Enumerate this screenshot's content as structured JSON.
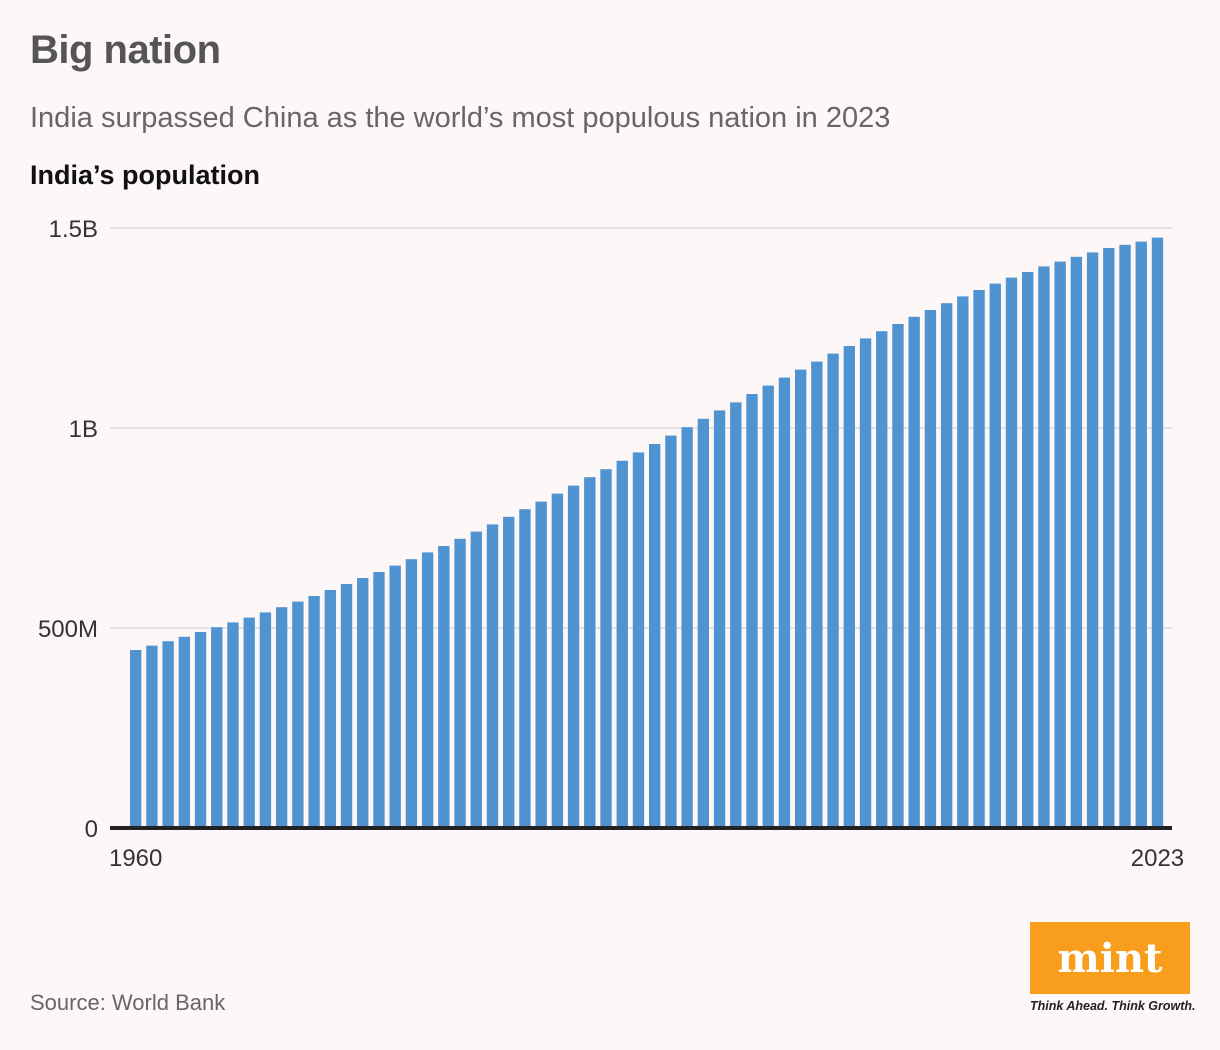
{
  "header": {
    "title": "Big nation",
    "subtitle": "India surpassed China as the world’s most populous nation in 2023"
  },
  "chart_heading": "India’s population",
  "footer": {
    "source": "Source: World Bank",
    "logo_text": "mint",
    "tagline": "Think Ahead. Think Growth."
  },
  "colors": {
    "bar": "#4f93d1",
    "grid": "#dcdcdc",
    "axis": "#222222",
    "logo": "#f89d1c"
  },
  "chart_data": {
    "type": "bar",
    "title": "India’s population",
    "xlabel": "",
    "ylabel": "",
    "ylim": [
      0,
      1500000000
    ],
    "y_ticks": [
      {
        "value": 0,
        "label": "0"
      },
      {
        "value": 500000000,
        "label": "500M"
      },
      {
        "value": 1000000000,
        "label": "1B"
      },
      {
        "value": 1500000000,
        "label": "1.5B"
      }
    ],
    "x_tick_labels": [
      {
        "index": 0,
        "label": "1960"
      },
      {
        "index": 63,
        "label": "2023"
      }
    ],
    "categories": [
      1960,
      1961,
      1962,
      1963,
      1964,
      1965,
      1966,
      1967,
      1968,
      1969,
      1970,
      1971,
      1972,
      1973,
      1974,
      1975,
      1976,
      1977,
      1978,
      1979,
      1980,
      1981,
      1982,
      1983,
      1984,
      1985,
      1986,
      1987,
      1988,
      1989,
      1990,
      1991,
      1992,
      1993,
      1994,
      1995,
      1996,
      1997,
      1998,
      1999,
      2000,
      2001,
      2002,
      2003,
      2004,
      2005,
      2006,
      2007,
      2008,
      2009,
      2010,
      2011,
      2012,
      2013,
      2014,
      2015,
      2016,
      2017,
      2018,
      2019,
      2020,
      2021,
      2022,
      2023
    ],
    "values": [
      445000000,
      456000000,
      467000000,
      478000000,
      490000000,
      502000000,
      514000000,
      526000000,
      539000000,
      552000000,
      566000000,
      580000000,
      595000000,
      610000000,
      625000000,
      640000000,
      656000000,
      672000000,
      689000000,
      705000000,
      723000000,
      741000000,
      759000000,
      778000000,
      797000000,
      816000000,
      836000000,
      856000000,
      877000000,
      897000000,
      918000000,
      939000000,
      960000000,
      981000000,
      1002000000,
      1023000000,
      1044000000,
      1064000000,
      1085000000,
      1106000000,
      1126000000,
      1146000000,
      1166000000,
      1186000000,
      1205000000,
      1224000000,
      1242000000,
      1260000000,
      1278000000,
      1295000000,
      1312000000,
      1329000000,
      1345000000,
      1361000000,
      1376000000,
      1390000000,
      1404000000,
      1416000000,
      1428000000,
      1439000000,
      1450000000,
      1458000000,
      1466000000,
      1476000000
    ]
  }
}
